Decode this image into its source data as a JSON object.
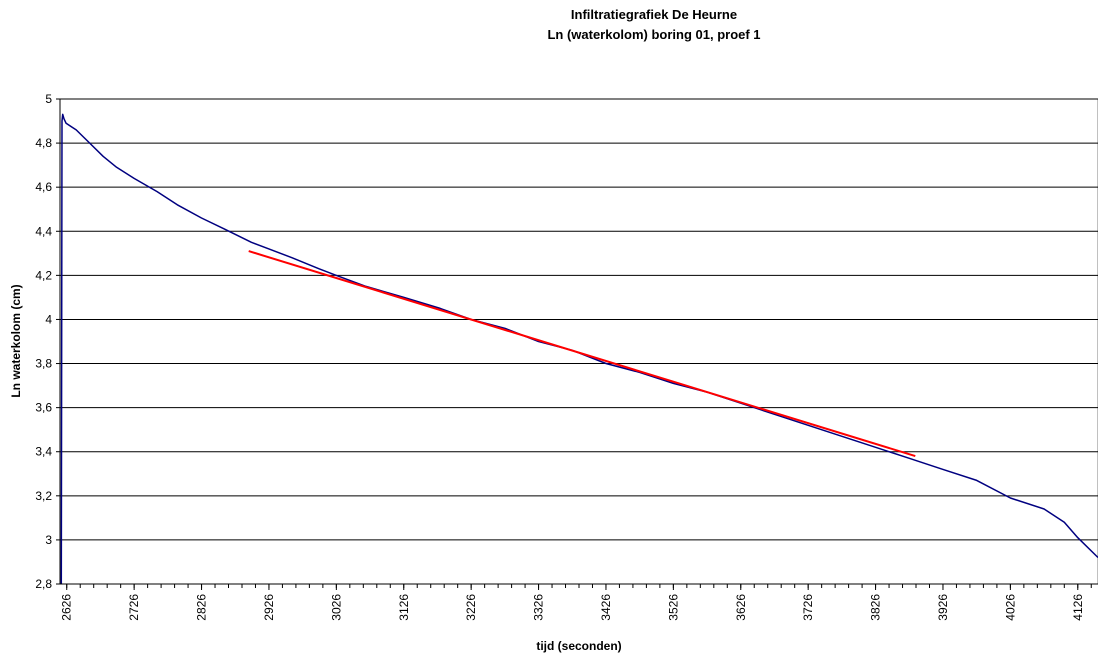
{
  "chart_data": {
    "type": "line",
    "title": "Infiltratiegrafiek De Heurne",
    "subtitle": "Ln (waterkolom) boring 01, proef 1",
    "xlabel": "tijd (seconden)",
    "ylabel": "Ln waterkolom (cm)",
    "xlim": [
      2616,
      4156
    ],
    "ylim": [
      2.8,
      5.0
    ],
    "x_ticks": [
      2626,
      2726,
      2826,
      2926,
      3026,
      3126,
      3226,
      3326,
      3426,
      3526,
      3626,
      3726,
      3826,
      3926,
      4026,
      4126
    ],
    "y_ticks": [
      "2,8",
      "3",
      "3,2",
      "3,4",
      "3,6",
      "3,8",
      "4",
      "4,2",
      "4,4",
      "4,6",
      "4,8",
      "5"
    ],
    "y_tick_values": [
      2.8,
      3.0,
      3.2,
      3.4,
      3.6,
      3.8,
      4.0,
      4.2,
      4.4,
      4.6,
      4.8,
      5.0
    ],
    "grid": "horizontal",
    "series": [
      {
        "color": "#000080",
        "points": [
          [
            2618,
            2.8
          ],
          [
            2619,
            4.9
          ],
          [
            2620,
            4.93
          ],
          [
            2622,
            4.91
          ],
          [
            2625,
            4.89
          ],
          [
            2640,
            4.86
          ],
          [
            2660,
            4.8
          ],
          [
            2680,
            4.74
          ],
          [
            2700,
            4.69
          ],
          [
            2726,
            4.64
          ],
          [
            2760,
            4.58
          ],
          [
            2790,
            4.52
          ],
          [
            2826,
            4.46
          ],
          [
            2860,
            4.41
          ],
          [
            2900,
            4.35
          ],
          [
            2926,
            4.32
          ],
          [
            2960,
            4.28
          ],
          [
            3000,
            4.23
          ],
          [
            3026,
            4.2
          ],
          [
            3070,
            4.15
          ],
          [
            3126,
            4.1
          ],
          [
            3180,
            4.05
          ],
          [
            3226,
            4.0
          ],
          [
            3276,
            3.96
          ],
          [
            3326,
            3.9
          ],
          [
            3376,
            3.86
          ],
          [
            3426,
            3.8
          ],
          [
            3476,
            3.76
          ],
          [
            3526,
            3.71
          ],
          [
            3576,
            3.67
          ],
          [
            3626,
            3.62
          ],
          [
            3676,
            3.57
          ],
          [
            3726,
            3.52
          ],
          [
            3776,
            3.47
          ],
          [
            3826,
            3.42
          ],
          [
            3876,
            3.37
          ],
          [
            3926,
            3.32
          ],
          [
            3976,
            3.27
          ],
          [
            4026,
            3.19
          ],
          [
            4076,
            3.14
          ],
          [
            4106,
            3.08
          ],
          [
            4126,
            3.01
          ],
          [
            4156,
            2.92
          ]
        ]
      },
      {
        "color": "#ff0000",
        "points": [
          [
            2896,
            4.31
          ],
          [
            3885,
            3.38
          ]
        ]
      }
    ]
  }
}
